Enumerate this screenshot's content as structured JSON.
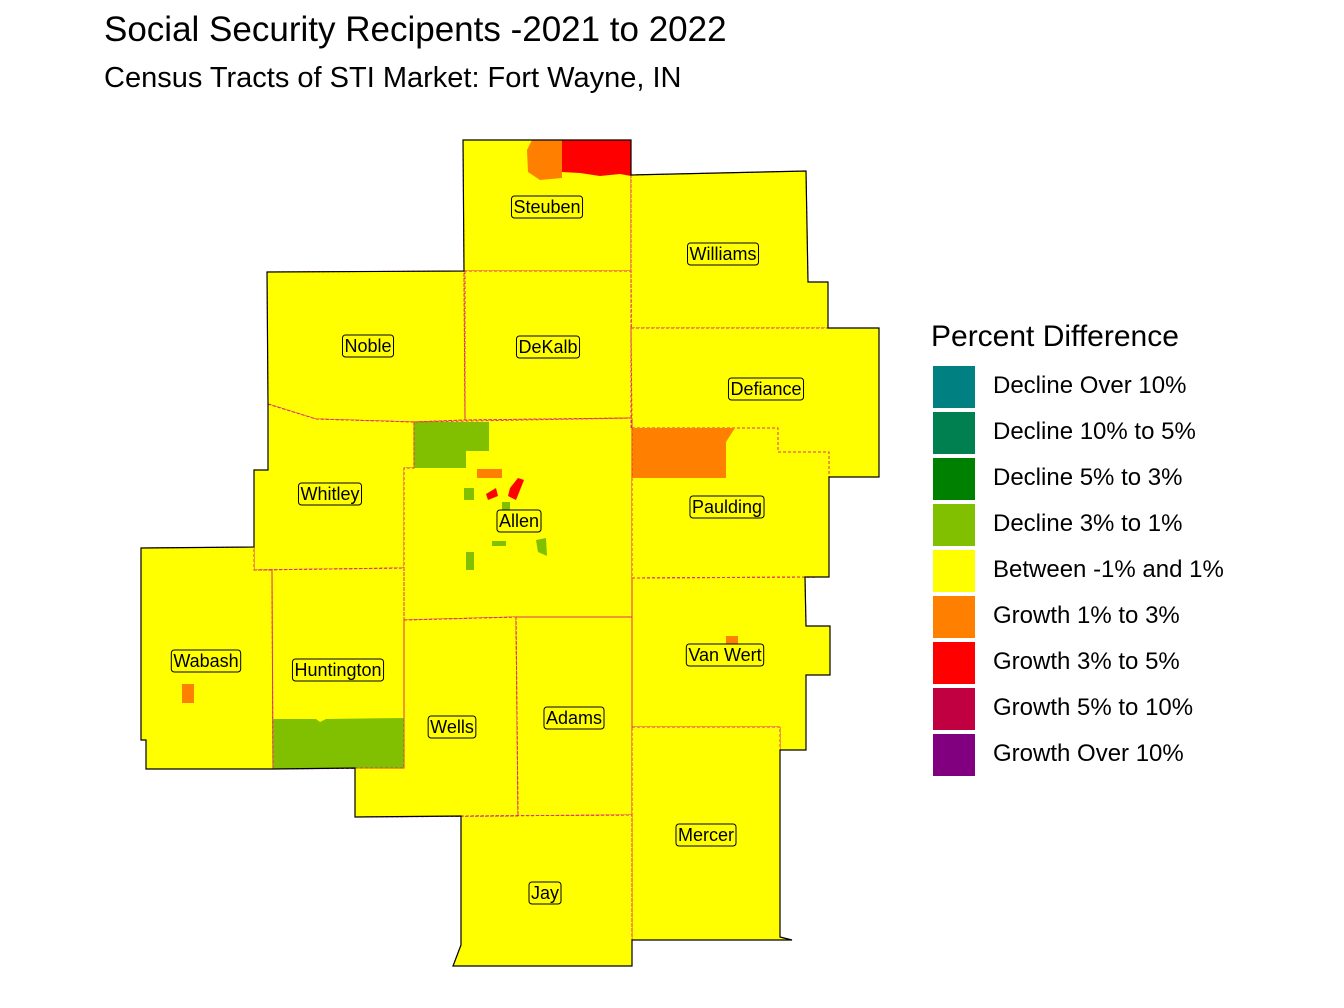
{
  "title": "Social Security Recipents -2021 to 2022",
  "subtitle": "Census Tracts of STI Market: Fort Wayne, IN",
  "legend": {
    "title": "Percent Difference",
    "items": [
      {
        "label": "Decline Over 10%",
        "color": "#008080"
      },
      {
        "label": "Decline 10% to 5%",
        "color": "#008050"
      },
      {
        "label": "Decline 5% to 3%",
        "color": "#008000"
      },
      {
        "label": "Decline 3% to 1%",
        "color": "#80c000"
      },
      {
        "label": "Between -1% and 1%",
        "color": "#ffff00"
      },
      {
        "label": "Growth 1% to 3%",
        "color": "#ff8000"
      },
      {
        "label": "Growth 3% to 5%",
        "color": "#ff0000"
      },
      {
        "label": "Growth 5% to 10%",
        "color": "#c00040"
      },
      {
        "label": "Growth Over 10%",
        "color": "#800080"
      }
    ]
  },
  "counties": [
    {
      "name": "Steuben",
      "category": "Between -1% and 1%"
    },
    {
      "name": "Williams",
      "category": "Between -1% and 1%"
    },
    {
      "name": "Noble",
      "category": "Between -1% and 1%"
    },
    {
      "name": "DeKalb",
      "category": "Between -1% and 1%"
    },
    {
      "name": "Defiance",
      "category": "Between -1% and 1%"
    },
    {
      "name": "Whitley",
      "category": "Between -1% and 1%"
    },
    {
      "name": "Allen",
      "category": "Between -1% and 1%"
    },
    {
      "name": "Paulding",
      "category": "Between -1% and 1%"
    },
    {
      "name": "Wabash",
      "category": "Between -1% and 1%"
    },
    {
      "name": "Huntington",
      "category": "Between -1% and 1%"
    },
    {
      "name": "Van Wert",
      "category": "Between -1% and 1%"
    },
    {
      "name": "Wells",
      "category": "Between -1% and 1%"
    },
    {
      "name": "Adams",
      "category": "Between -1% and 1%"
    },
    {
      "name": "Mercer",
      "category": "Between -1% and 1%"
    },
    {
      "name": "Jay",
      "category": "Between -1% and 1%"
    }
  ],
  "colors": {
    "base": "#ffff00",
    "county_border": "#e0306a",
    "outline": "#000000",
    "label_box": "#ffff00"
  }
}
